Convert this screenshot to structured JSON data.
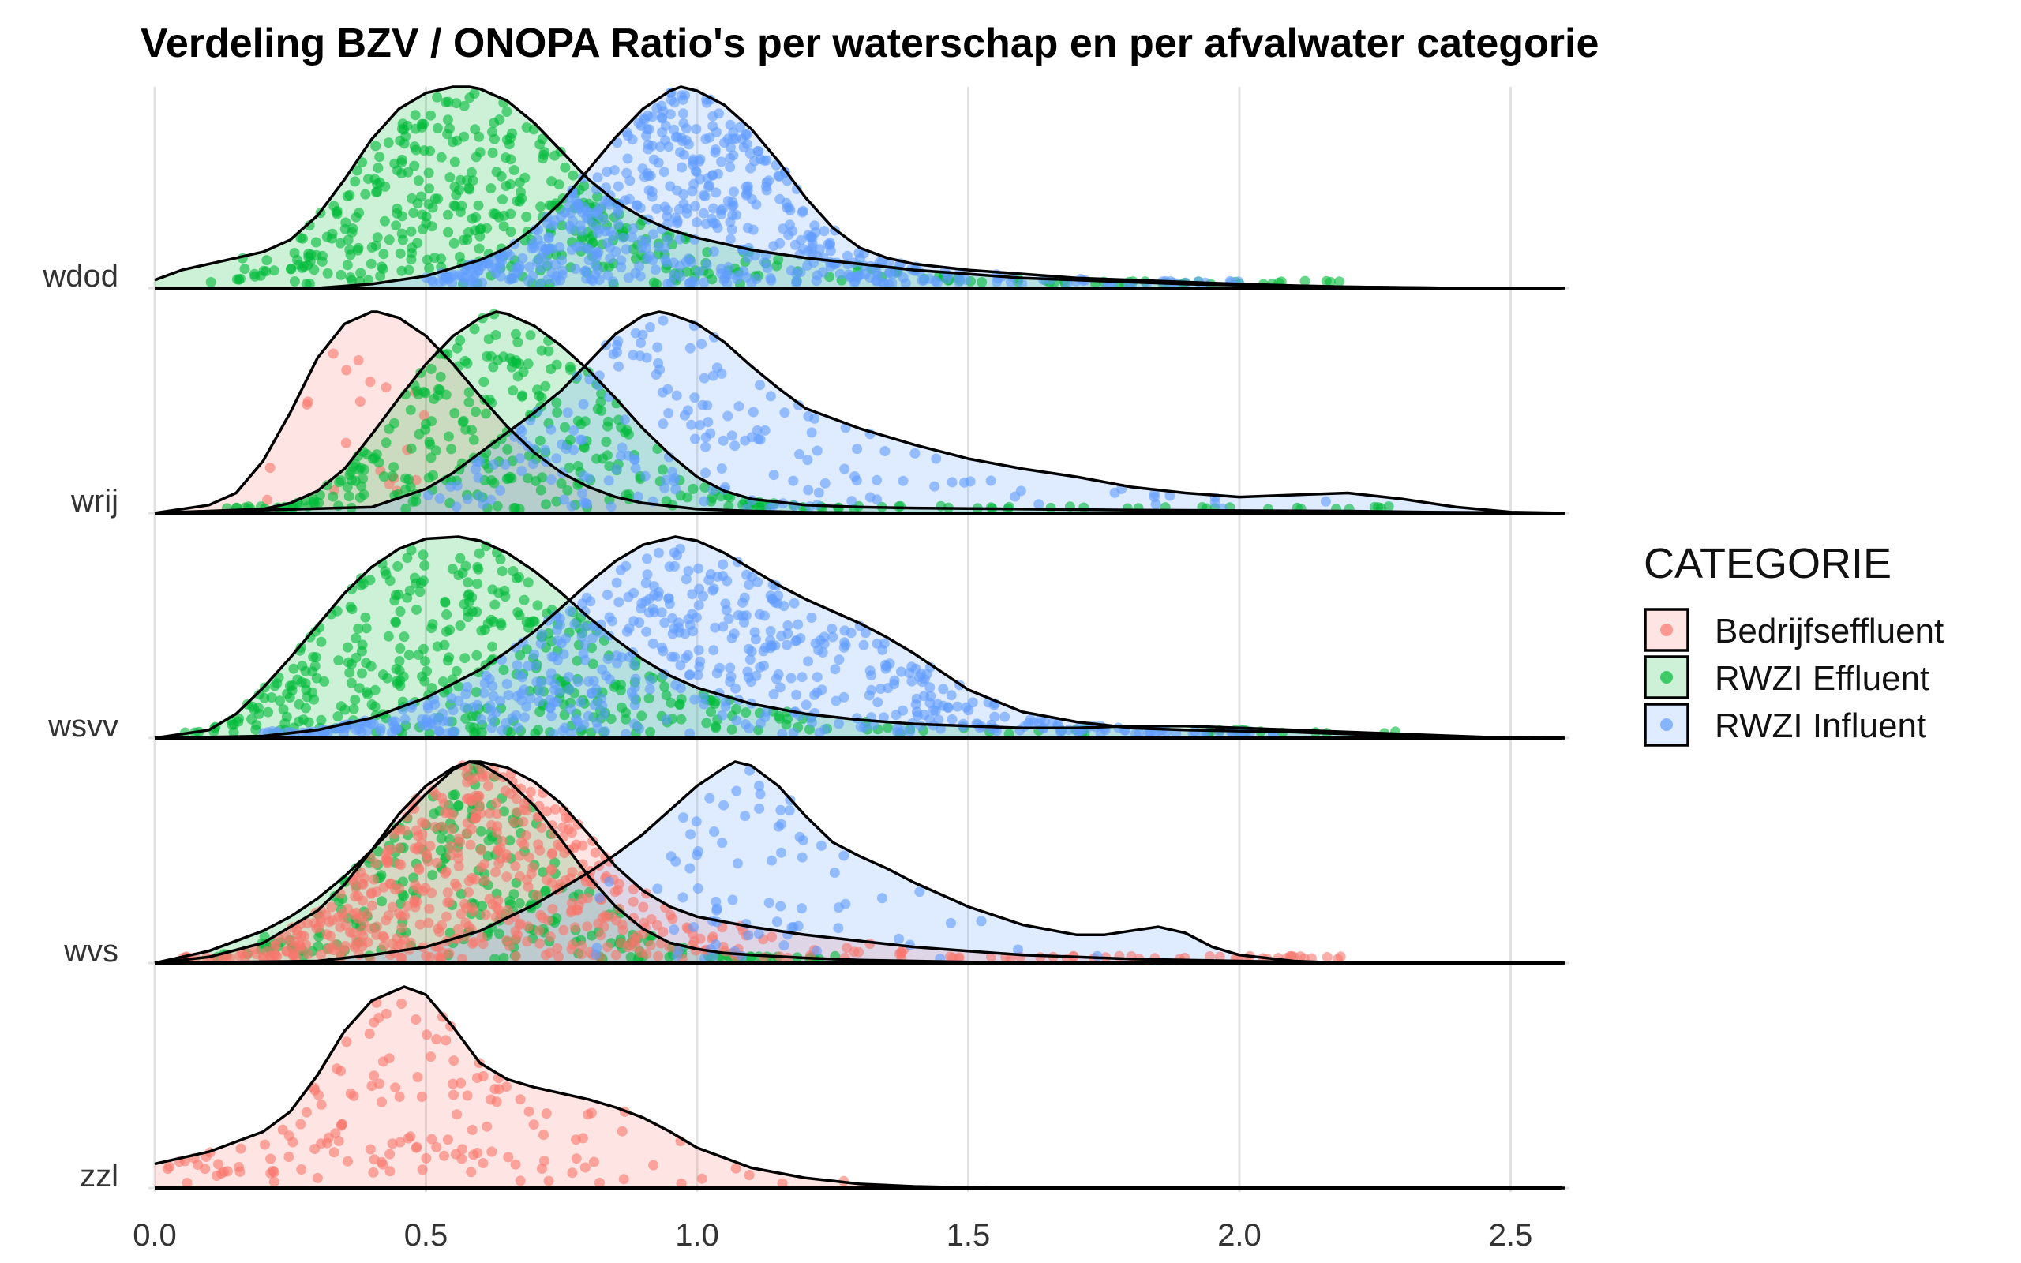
{
  "chart_data": {
    "type": "ridgeline",
    "title": "Verdeling BZV / ONOPA Ratio's per waterschap en per afvalwater categorie",
    "xlim": [
      0,
      2.6
    ],
    "x_ticks": [
      0.0,
      0.5,
      1.0,
      1.5,
      2.0,
      2.5
    ],
    "x_tick_labels": [
      "0.0",
      "0.5",
      "1.0",
      "1.5",
      "2.0",
      "2.5"
    ],
    "grid": true,
    "legend": {
      "title": "CATEGORIE",
      "position": "right",
      "items": [
        {
          "label": "Bedrijfseffluent",
          "color": "#F8766D"
        },
        {
          "label": "RWZI Effluent",
          "color": "#00BA38"
        },
        {
          "label": "RWZI Influent",
          "color": "#619CFF"
        }
      ]
    },
    "groups": [
      {
        "label": "wdod",
        "series": [
          {
            "category": "RWZI Effluent",
            "mode": 0.58,
            "x": [
              0.0,
              0.05,
              0.1,
              0.15,
              0.2,
              0.25,
              0.3,
              0.35,
              0.4,
              0.45,
              0.5,
              0.55,
              0.58,
              0.6,
              0.65,
              0.7,
              0.75,
              0.8,
              0.85,
              0.9,
              0.95,
              1.0,
              1.1,
              1.2,
              1.3,
              1.4,
              1.5,
              1.6,
              1.7,
              1.8,
              1.9,
              2.0,
              2.1,
              2.2,
              2.4,
              2.6
            ],
            "density": [
              0.04,
              0.09,
              0.12,
              0.15,
              0.18,
              0.24,
              0.36,
              0.54,
              0.74,
              0.89,
              0.97,
              1.0,
              1.0,
              0.99,
              0.93,
              0.82,
              0.68,
              0.54,
              0.43,
              0.35,
              0.29,
              0.25,
              0.19,
              0.15,
              0.12,
              0.09,
              0.07,
              0.05,
              0.04,
              0.03,
              0.02,
              0.015,
              0.01,
              0.006,
              0.0,
              0.0
            ],
            "n_points": 430,
            "point_range": [
              0.1,
              2.2
            ]
          },
          {
            "category": "RWZI Influent",
            "mode": 0.97,
            "x": [
              0.0,
              0.3,
              0.4,
              0.5,
              0.6,
              0.65,
              0.7,
              0.75,
              0.8,
              0.85,
              0.9,
              0.95,
              0.97,
              1.0,
              1.05,
              1.1,
              1.15,
              1.2,
              1.25,
              1.3,
              1.35,
              1.4,
              1.5,
              1.6,
              1.7,
              1.8,
              1.9,
              2.0,
              2.1,
              2.2,
              2.4,
              2.6
            ],
            "density": [
              0.0,
              0.0,
              0.02,
              0.06,
              0.14,
              0.2,
              0.3,
              0.43,
              0.59,
              0.75,
              0.89,
              0.98,
              1.0,
              0.98,
              0.91,
              0.79,
              0.63,
              0.45,
              0.3,
              0.2,
              0.15,
              0.12,
              0.09,
              0.07,
              0.05,
              0.04,
              0.03,
              0.02,
              0.012,
              0.006,
              0.0,
              0.0
            ],
            "n_points": 560,
            "point_range": [
              0.5,
              2.0
            ]
          }
        ]
      },
      {
        "label": "wrij",
        "series": [
          {
            "category": "Bedrijfseffluent",
            "mode": 0.41,
            "x": [
              0.0,
              0.1,
              0.15,
              0.2,
              0.25,
              0.3,
              0.35,
              0.4,
              0.41,
              0.45,
              0.5,
              0.55,
              0.6,
              0.65,
              0.7,
              0.75,
              0.8,
              0.85,
              0.9,
              1.0,
              1.1,
              1.2,
              1.4,
              2.6
            ],
            "density": [
              0.0,
              0.04,
              0.1,
              0.26,
              0.5,
              0.77,
              0.94,
              1.0,
              1.0,
              0.97,
              0.88,
              0.74,
              0.58,
              0.43,
              0.3,
              0.2,
              0.13,
              0.08,
              0.05,
              0.02,
              0.01,
              0.004,
              0.0,
              0.0
            ],
            "n_points": 20,
            "point_range": [
              0.2,
              0.5
            ]
          },
          {
            "category": "RWZI Effluent",
            "mode": 0.63,
            "x": [
              0.0,
              0.2,
              0.25,
              0.3,
              0.35,
              0.4,
              0.45,
              0.5,
              0.55,
              0.6,
              0.63,
              0.65,
              0.7,
              0.75,
              0.8,
              0.85,
              0.9,
              0.95,
              1.0,
              1.05,
              1.1,
              1.2,
              1.3,
              1.4,
              1.6,
              1.8,
              2.0,
              2.2,
              2.35,
              2.6
            ],
            "density": [
              0.0,
              0.02,
              0.05,
              0.11,
              0.22,
              0.39,
              0.57,
              0.74,
              0.88,
              0.97,
              1.0,
              0.99,
              0.93,
              0.83,
              0.71,
              0.57,
              0.42,
              0.29,
              0.18,
              0.11,
              0.07,
              0.04,
              0.03,
              0.025,
              0.02,
              0.015,
              0.012,
              0.01,
              0.005,
              0.0
            ],
            "n_points": 320,
            "point_range": [
              0.1,
              2.3
            ]
          },
          {
            "category": "RWZI Influent",
            "mode": 0.93,
            "x": [
              0.0,
              0.4,
              0.5,
              0.55,
              0.6,
              0.65,
              0.7,
              0.75,
              0.8,
              0.85,
              0.9,
              0.93,
              0.95,
              1.0,
              1.05,
              1.1,
              1.15,
              1.2,
              1.3,
              1.4,
              1.5,
              1.6,
              1.7,
              1.8,
              1.9,
              2.0,
              2.1,
              2.2,
              2.3,
              2.4,
              2.5,
              2.6
            ],
            "density": [
              0.0,
              0.03,
              0.12,
              0.2,
              0.3,
              0.4,
              0.5,
              0.61,
              0.75,
              0.89,
              0.98,
              1.0,
              0.99,
              0.94,
              0.85,
              0.73,
              0.62,
              0.52,
              0.42,
              0.34,
              0.27,
              0.22,
              0.18,
              0.13,
              0.1,
              0.08,
              0.09,
              0.1,
              0.07,
              0.03,
              0.005,
              0.0
            ],
            "n_points": 190,
            "point_range": [
              0.5,
              2.35
            ]
          }
        ]
      },
      {
        "label": "wsvv",
        "series": [
          {
            "category": "RWZI Effluent",
            "mode": 0.56,
            "x": [
              0.0,
              0.1,
              0.15,
              0.2,
              0.25,
              0.3,
              0.35,
              0.4,
              0.45,
              0.5,
              0.56,
              0.6,
              0.65,
              0.7,
              0.75,
              0.8,
              0.85,
              0.9,
              0.95,
              1.0,
              1.1,
              1.2,
              1.3,
              1.4,
              1.5,
              1.6,
              1.7,
              1.8,
              1.9,
              2.0,
              2.1,
              2.2,
              2.3,
              2.45,
              2.6
            ],
            "density": [
              0.0,
              0.04,
              0.12,
              0.25,
              0.4,
              0.56,
              0.72,
              0.85,
              0.94,
              0.99,
              1.0,
              0.98,
              0.92,
              0.83,
              0.72,
              0.6,
              0.49,
              0.39,
              0.31,
              0.25,
              0.17,
              0.12,
              0.09,
              0.07,
              0.06,
              0.05,
              0.05,
              0.06,
              0.06,
              0.05,
              0.04,
              0.03,
              0.02,
              0.005,
              0.0
            ],
            "n_points": 420,
            "point_range": [
              0.05,
              2.3
            ]
          },
          {
            "category": "RWZI Influent",
            "mode": 0.96,
            "x": [
              0.0,
              0.2,
              0.3,
              0.4,
              0.5,
              0.6,
              0.65,
              0.7,
              0.75,
              0.8,
              0.85,
              0.9,
              0.96,
              1.0,
              1.05,
              1.1,
              1.15,
              1.2,
              1.25,
              1.3,
              1.35,
              1.4,
              1.45,
              1.5,
              1.6,
              1.7,
              1.8,
              1.9,
              2.0,
              2.1,
              2.2,
              2.3,
              2.45,
              2.6
            ],
            "density": [
              0.0,
              0.01,
              0.04,
              0.1,
              0.2,
              0.34,
              0.43,
              0.53,
              0.65,
              0.77,
              0.88,
              0.96,
              1.0,
              0.98,
              0.92,
              0.84,
              0.76,
              0.69,
              0.63,
              0.57,
              0.5,
              0.42,
              0.33,
              0.24,
              0.13,
              0.08,
              0.05,
              0.04,
              0.035,
              0.03,
              0.02,
              0.01,
              0.002,
              0.0
            ],
            "n_points": 560,
            "point_range": [
              0.2,
              2.1
            ]
          }
        ]
      },
      {
        "label": "wvs",
        "series": [
          {
            "category": "RWZI Effluent",
            "mode": 0.58,
            "x": [
              0.0,
              0.1,
              0.2,
              0.25,
              0.3,
              0.35,
              0.4,
              0.45,
              0.5,
              0.55,
              0.58,
              0.6,
              0.65,
              0.7,
              0.75,
              0.8,
              0.85,
              0.9,
              0.95,
              1.0,
              1.05,
              1.1,
              1.2,
              1.3,
              1.4,
              1.6,
              2.6
            ],
            "density": [
              0.0,
              0.06,
              0.16,
              0.23,
              0.32,
              0.43,
              0.56,
              0.7,
              0.84,
              0.96,
              1.0,
              0.99,
              0.91,
              0.78,
              0.61,
              0.43,
              0.28,
              0.17,
              0.1,
              0.07,
              0.05,
              0.04,
              0.025,
              0.015,
              0.01,
              0.0,
              0.0
            ],
            "n_points": 260,
            "point_range": [
              0.1,
              1.3
            ]
          },
          {
            "category": "Bedrijfseffluent",
            "mode": 0.58,
            "x": [
              0.0,
              0.1,
              0.2,
              0.3,
              0.35,
              0.4,
              0.45,
              0.5,
              0.55,
              0.58,
              0.6,
              0.65,
              0.7,
              0.75,
              0.8,
              0.85,
              0.9,
              0.95,
              1.0,
              1.1,
              1.2,
              1.3,
              1.4,
              1.5,
              1.6,
              1.7,
              1.8,
              1.9,
              2.0,
              2.1,
              2.2,
              2.6
            ],
            "density": [
              0.0,
              0.03,
              0.1,
              0.26,
              0.39,
              0.56,
              0.74,
              0.88,
              0.97,
              1.0,
              1.0,
              0.97,
              0.9,
              0.79,
              0.64,
              0.48,
              0.36,
              0.28,
              0.23,
              0.18,
              0.14,
              0.11,
              0.08,
              0.06,
              0.04,
              0.03,
              0.02,
              0.015,
              0.01,
              0.005,
              0.0,
              0.0
            ],
            "n_points": 560,
            "point_range": [
              0.05,
              2.2
            ]
          },
          {
            "category": "RWZI Influent",
            "mode": 1.07,
            "x": [
              0.0,
              0.3,
              0.4,
              0.5,
              0.6,
              0.7,
              0.8,
              0.85,
              0.9,
              0.95,
              1.0,
              1.05,
              1.07,
              1.1,
              1.15,
              1.2,
              1.25,
              1.3,
              1.35,
              1.4,
              1.5,
              1.6,
              1.7,
              1.75,
              1.8,
              1.85,
              1.9,
              1.95,
              2.0,
              2.1,
              2.2,
              2.6
            ],
            "density": [
              0.0,
              0.01,
              0.04,
              0.08,
              0.16,
              0.29,
              0.45,
              0.54,
              0.64,
              0.76,
              0.88,
              0.97,
              1.0,
              0.98,
              0.88,
              0.73,
              0.6,
              0.53,
              0.47,
              0.4,
              0.28,
              0.19,
              0.14,
              0.14,
              0.16,
              0.18,
              0.15,
              0.08,
              0.04,
              0.01,
              0.0,
              0.0
            ],
            "n_points": 80,
            "point_range": [
              0.8,
              1.9
            ]
          }
        ]
      },
      {
        "label": "zzl",
        "series": [
          {
            "category": "Bedrijfseffluent",
            "mode": 0.46,
            "x": [
              0.0,
              0.1,
              0.2,
              0.25,
              0.3,
              0.35,
              0.4,
              0.46,
              0.5,
              0.55,
              0.6,
              0.65,
              0.7,
              0.75,
              0.8,
              0.85,
              0.9,
              0.95,
              1.0,
              1.1,
              1.2,
              1.3,
              1.4,
              1.5,
              1.6,
              2.6
            ],
            "density": [
              0.12,
              0.18,
              0.28,
              0.38,
              0.56,
              0.78,
              0.93,
              1.0,
              0.96,
              0.8,
              0.62,
              0.54,
              0.5,
              0.47,
              0.44,
              0.4,
              0.35,
              0.28,
              0.2,
              0.1,
              0.05,
              0.02,
              0.008,
              0.002,
              0.0,
              0.0
            ],
            "n_points": 150,
            "point_range": [
              0.0,
              1.3
            ]
          }
        ]
      }
    ]
  }
}
